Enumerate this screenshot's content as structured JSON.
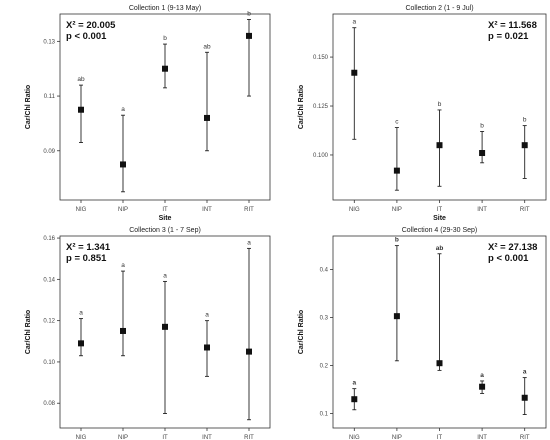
{
  "chart_data": [
    {
      "type": "scatter",
      "title": "Collection 1 (9-13 May)",
      "xlabel": "Site",
      "ylabel": "Car/Chl Ratio",
      "categories": [
        "NIG",
        "NIP",
        "IT",
        "INT",
        "RIT"
      ],
      "yticks": [
        "0.09",
        "0.11",
        "0.13"
      ],
      "ylim": [
        0.072,
        0.14
      ],
      "grid": false,
      "stats_position": "top-left",
      "stats": [
        "X² = 20.005",
        "p < 0.001"
      ],
      "series": [
        {
          "values": [
            0.105,
            0.085,
            0.12,
            0.102,
            0.132
          ],
          "error_low": [
            0.093,
            0.075,
            0.113,
            0.09,
            0.11
          ],
          "error_high": [
            0.114,
            0.103,
            0.129,
            0.126,
            0.138
          ],
          "letters": [
            "ab",
            "a",
            "b",
            "ab",
            "b"
          ],
          "letters_bold": false
        }
      ]
    },
    {
      "type": "scatter",
      "title": "Collection 2 (1 - 9 Jul)",
      "xlabel": "Site",
      "ylabel": "Car/Chl Ratio",
      "categories": [
        "NIG",
        "NIP",
        "IT",
        "INT",
        "RIT"
      ],
      "yticks": [
        "0.100",
        "0.125",
        "0.150"
      ],
      "ylim": [
        0.077,
        0.172
      ],
      "grid": false,
      "stats_position": "top-right",
      "stats": [
        "X² = 11.568",
        "p = 0.021"
      ],
      "series": [
        {
          "values": [
            0.142,
            0.092,
            0.105,
            0.101,
            0.105
          ],
          "error_low": [
            0.108,
            0.082,
            0.084,
            0.096,
            0.088
          ],
          "error_high": [
            0.165,
            0.114,
            0.123,
            0.112,
            0.115
          ],
          "letters": [
            "a",
            "c",
            "b",
            "b",
            "b"
          ],
          "letters_bold": false
        }
      ]
    },
    {
      "type": "scatter",
      "title": "Collection 3 (1 - 7 Sep)",
      "xlabel": "Site",
      "ylabel": "Car/Chl Ratio",
      "categories": [
        "NIG",
        "NIP",
        "IT",
        "INT",
        "RIT"
      ],
      "yticks": [
        "0.08",
        "0.10",
        "0.12",
        "0.14",
        "0.16"
      ],
      "ylim": [
        0.068,
        0.161
      ],
      "grid": false,
      "stats_position": "top-left",
      "stats": [
        "X² = 1.341",
        "p = 0.851"
      ],
      "series": [
        {
          "values": [
            0.109,
            0.115,
            0.117,
            0.107,
            0.105
          ],
          "error_low": [
            0.103,
            0.103,
            0.075,
            0.093,
            0.072
          ],
          "error_high": [
            0.121,
            0.144,
            0.139,
            0.12,
            0.155
          ],
          "letters": [
            "a",
            "a",
            "a",
            "a",
            "a"
          ],
          "letters_bold": false
        }
      ]
    },
    {
      "type": "scatter",
      "title": "Collection 4 (29-30 Sep)",
      "xlabel": "Site",
      "ylabel": "Car/Chl Ratio",
      "categories": [
        "NIG",
        "NIP",
        "IT",
        "INT",
        "RIT"
      ],
      "yticks": [
        "0.1",
        "0.2",
        "0.3",
        "0.4"
      ],
      "ylim": [
        0.07,
        0.47
      ],
      "grid": false,
      "stats_position": "top-right",
      "stats": [
        "X² = 27.138",
        "p < 0.001"
      ],
      "series": [
        {
          "values": [
            0.13,
            0.303,
            0.205,
            0.156,
            0.133
          ],
          "error_low": [
            0.108,
            0.21,
            0.19,
            0.142,
            0.098
          ],
          "error_high": [
            0.152,
            0.45,
            0.433,
            0.168,
            0.175
          ],
          "letters": [
            "a",
            "b",
            "ab",
            "a",
            "a"
          ],
          "letters_bold": true
        }
      ]
    }
  ]
}
